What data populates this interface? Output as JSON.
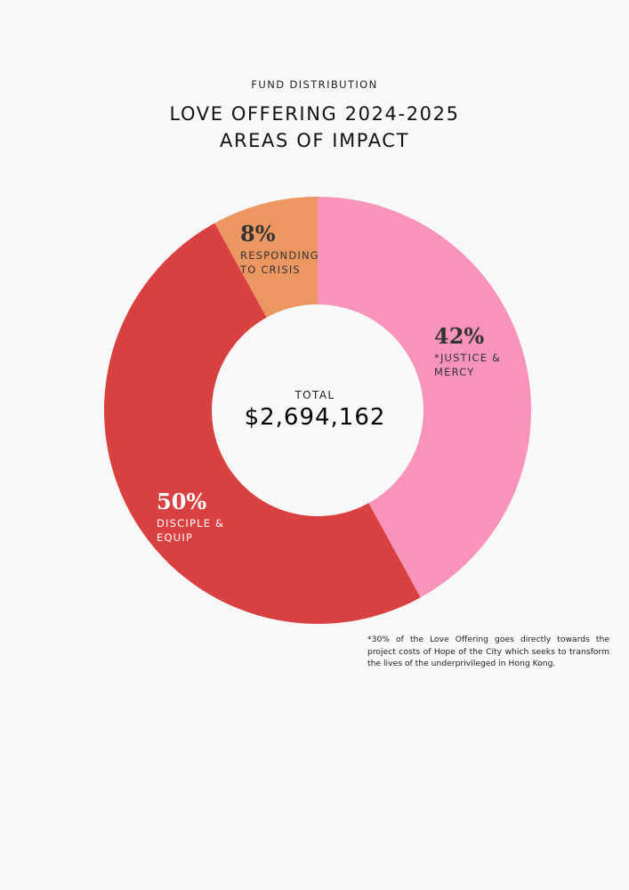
{
  "header": {
    "eyebrow": "FUND DISTRIBUTION",
    "title_line1": "LOVE OFFERING 2024-2025",
    "title_line2": "AREAS OF IMPACT"
  },
  "center": {
    "label": "TOTAL",
    "value": "$2,694,162"
  },
  "footnote": "*30% of the Love Offering goes directly towards the project costs of Hope of the City which seeks to transform the lives of the underprivileged in Hong Kong.",
  "colors": {
    "justice": "#f893b9",
    "disciple": "#d94040",
    "crisis": "#ec9661",
    "background": "#f9f8f8"
  },
  "chart_data": {
    "type": "pie",
    "donut": true,
    "slices": [
      {
        "pct_label": "42%",
        "value": 42,
        "label_lines": [
          "*JUSTICE &",
          "MERCY"
        ],
        "color": "#f893b9",
        "text_color": "#333333",
        "key": "justice-mercy"
      },
      {
        "pct_label": "50%",
        "value": 50,
        "label_lines": [
          "DISCIPLE &",
          "EQUIP"
        ],
        "color": "#d94040",
        "text_color": "#ffffff",
        "key": "disciple-equip"
      },
      {
        "pct_label": "8%",
        "value": 8,
        "label_lines": [
          "RESPONDING",
          "TO CRISIS"
        ],
        "color": "#ec9661",
        "text_color": "#333333",
        "key": "responding-crisis"
      }
    ]
  }
}
